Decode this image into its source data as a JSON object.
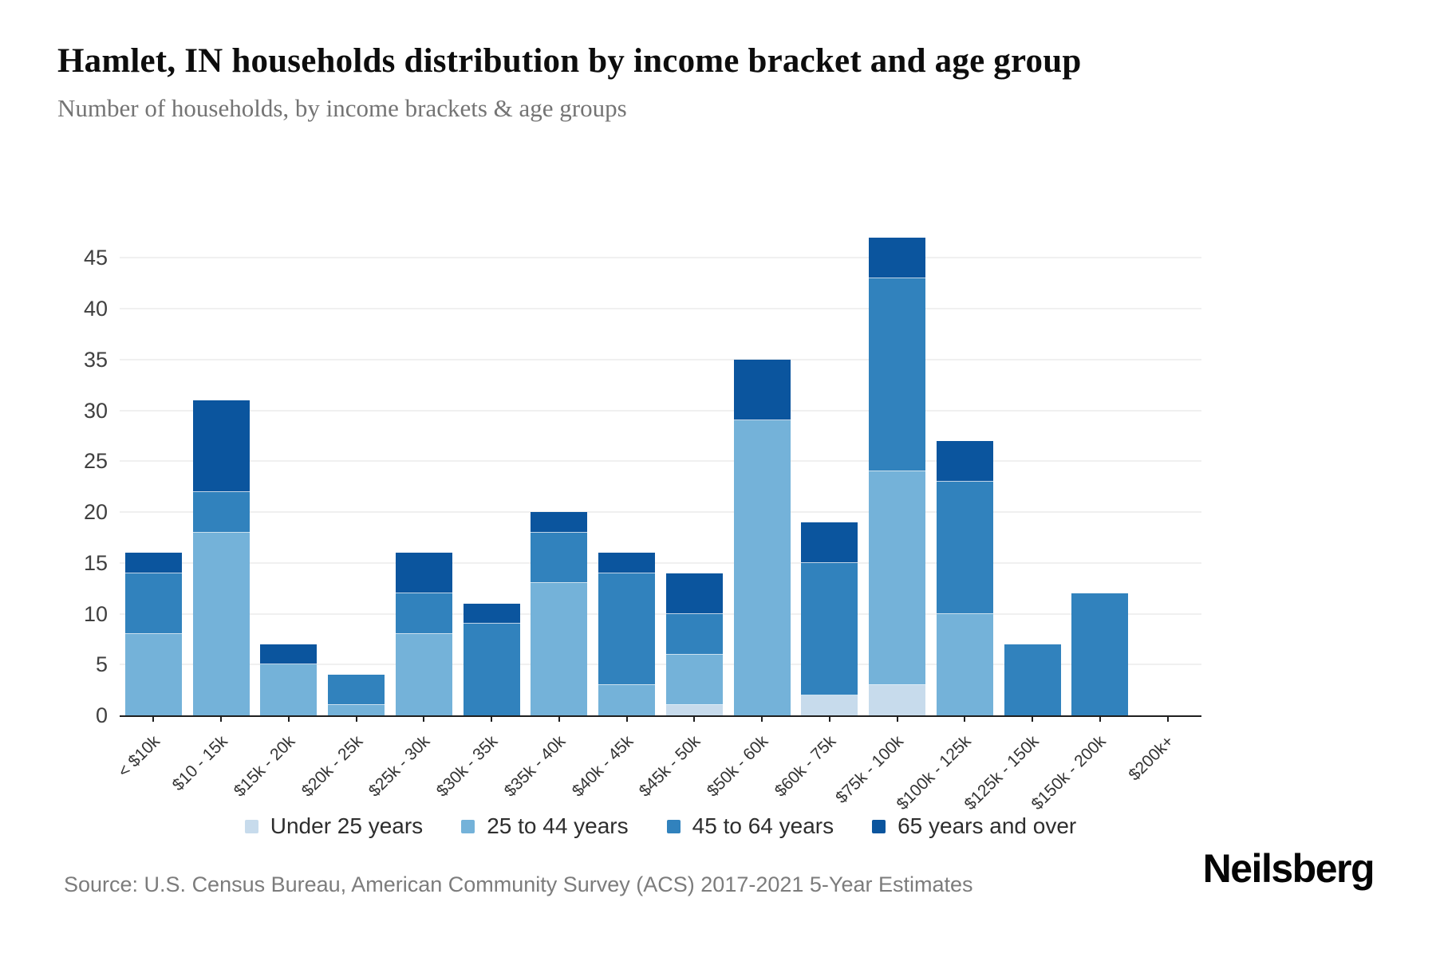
{
  "header": {
    "title": "Hamlet, IN households distribution by income bracket and age group",
    "subtitle": "Number of households, by income brackets & age groups"
  },
  "chart_data": {
    "type": "bar",
    "stacked": true,
    "title": "Hamlet, IN households distribution by income bracket and age group",
    "subtitle": "Number of households, by income brackets & age groups",
    "xlabel": "",
    "ylabel": "",
    "categories": [
      "< $10k",
      "$10 - 15k",
      "$15k - 20k",
      "$20k - 25k",
      "$25k - 30k",
      "$30k - 35k",
      "$35k - 40k",
      "$40k - 45k",
      "$45k - 50k",
      "$50k - 60k",
      "$60k - 75k",
      "$75k - 100k",
      "$100k - 125k",
      "$125k - 150k",
      "$150k - 200k",
      "$200k+"
    ],
    "series": [
      {
        "name": "Under 25 years",
        "color": "#c7dbec",
        "values": [
          0,
          0,
          0,
          0,
          0,
          0,
          0,
          0,
          1,
          0,
          2,
          3,
          0,
          0,
          0,
          0
        ]
      },
      {
        "name": "25 to 44 years",
        "color": "#74b2d9",
        "values": [
          8,
          18,
          5,
          1,
          8,
          0,
          13,
          3,
          5,
          29,
          0,
          21,
          10,
          0,
          0,
          0
        ]
      },
      {
        "name": "45 to 64 years",
        "color": "#3182bd",
        "values": [
          6,
          4,
          0,
          3,
          4,
          9,
          5,
          11,
          4,
          0,
          13,
          19,
          13,
          7,
          12,
          0
        ]
      },
      {
        "name": "65 years and over",
        "color": "#0b559e",
        "values": [
          2,
          9,
          2,
          0,
          4,
          2,
          2,
          2,
          4,
          6,
          4,
          4,
          4,
          0,
          0,
          0
        ]
      }
    ],
    "totals": [
      16,
      31,
      7,
      4,
      16,
      11,
      20,
      16,
      14,
      35,
      19,
      47,
      27,
      7,
      12,
      0
    ],
    "ylim": [
      0,
      51
    ],
    "yticks": [
      0,
      5,
      10,
      15,
      20,
      25,
      30,
      35,
      40,
      45
    ],
    "grid": "horizontal",
    "legend_position": "bottom"
  },
  "footer": {
    "source": "Source: U.S. Census Bureau, American Community Survey (ACS) 2017-2021 5-Year Estimates",
    "brand": "Neilsberg"
  }
}
